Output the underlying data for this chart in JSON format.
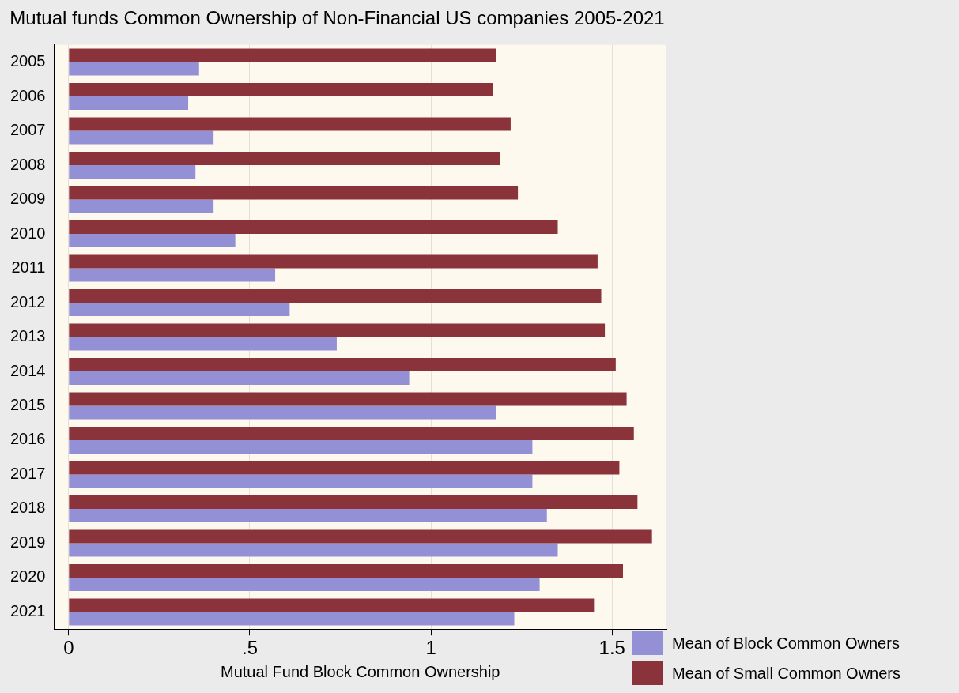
{
  "chart_data": {
    "type": "bar",
    "orientation": "horizontal",
    "title": "Mutual funds Common Ownership of Non-Financial US companies 2005-2021",
    "xlabel": "Mutual Fund Block Common Ownership",
    "categories": [
      "2005",
      "2006",
      "2007",
      "2008",
      "2009",
      "2010",
      "2011",
      "2012",
      "2013",
      "2014",
      "2015",
      "2016",
      "2017",
      "2018",
      "2019",
      "2020",
      "2021"
    ],
    "series": [
      {
        "name": "Mean of Block Common Owners",
        "color": "#9490d6",
        "values": [
          0.36,
          0.33,
          0.4,
          0.35,
          0.4,
          0.46,
          0.57,
          0.61,
          0.74,
          0.94,
          1.18,
          1.28,
          1.28,
          1.32,
          1.35,
          1.3,
          1.23
        ]
      },
      {
        "name": "Mean of Small Common Owners",
        "color": "#8b333b",
        "values": [
          1.18,
          1.17,
          1.22,
          1.19,
          1.24,
          1.35,
          1.46,
          1.47,
          1.48,
          1.51,
          1.54,
          1.56,
          1.52,
          1.57,
          1.61,
          1.53,
          1.45
        ]
      }
    ],
    "xlim": [
      -0.04,
      1.65
    ],
    "xticks": [
      0,
      {
        "value": 0.5,
        "label": ".5"
      },
      1,
      1.5
    ],
    "grid": "x",
    "legend": "bottom right"
  }
}
